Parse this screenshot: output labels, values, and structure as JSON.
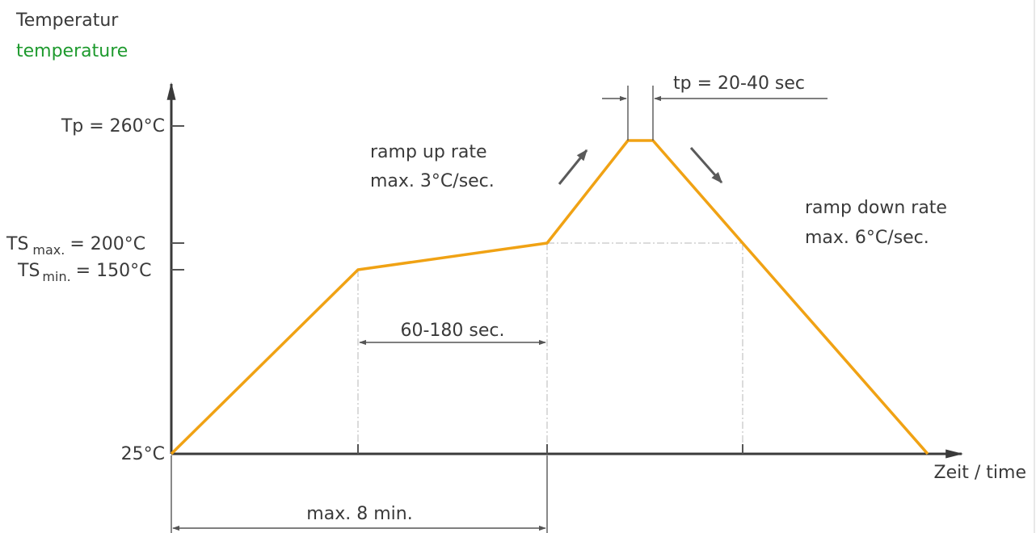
{
  "chart_data": {
    "type": "line",
    "ylabel": "Temperatur",
    "ylabel_en": "temperature",
    "xlabel": "Zeit / time",
    "y_ticks": [
      {
        "label": "Tp = 260°C",
        "value": 260
      },
      {
        "label_main": "TS",
        "label_sub": "max.",
        "label_tail": "= 200°C",
        "value": 200
      },
      {
        "label_main": "TS",
        "label_sub": "min.",
        "label_tail": "= 150°C",
        "value": 150
      },
      {
        "label": "25°C",
        "value": 25
      }
    ],
    "series": [
      {
        "points": [
          {
            "t": 0,
            "temp": 25
          },
          {
            "t": 1,
            "temp": 150
          },
          {
            "t": 2,
            "temp": 200
          },
          {
            "t": 2.42,
            "temp": 260
          },
          {
            "t": 2.55,
            "temp": 260
          },
          {
            "t": 3.03,
            "temp": 200
          },
          {
            "t": 4.0,
            "temp": 25
          }
        ],
        "color": "#f0a214"
      }
    ],
    "annotations": {
      "ramp_up": [
        "ramp up rate",
        "max. 3°C/sec."
      ],
      "ramp_down": [
        "ramp down rate",
        "max. 6°C/sec."
      ],
      "soak": "60-180 sec.",
      "peak_time": "tp = 20-40 sec",
      "total": "max. 8 min."
    },
    "grid": false
  }
}
